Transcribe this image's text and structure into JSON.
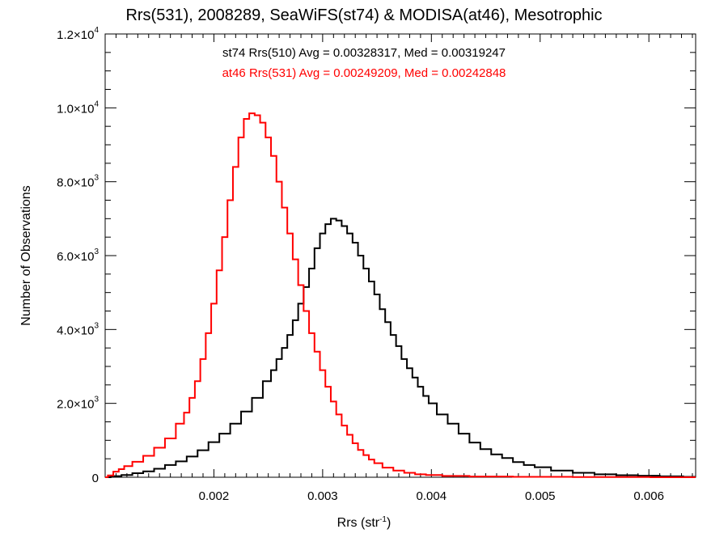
{
  "title": "Rrs(531), 2008289, SeaWiFS(st74) & MODISA(at46), Mesotrophic",
  "annotations": [
    {
      "text": "st74 Rrs(510) Avg = 0.00328317, Med = 0.00319247",
      "color": "#000000"
    },
    {
      "text": "at46 Rrs(531) Avg = 0.00249209, Med = 0.00242848",
      "color": "#ff0000"
    }
  ],
  "chart_data": {
    "type": "line",
    "title": "Rrs(531), 2008289, SeaWiFS(st74) & MODISA(at46), Mesotrophic",
    "xlabel": "Rrs (str",
    "xlabel_sup": "-1",
    "xlabel_tail": ")",
    "ylabel": "Number of Observations",
    "xlim": [
      0.001,
      0.00643
    ],
    "ylim": [
      0,
      12000
    ],
    "x_ticks": [
      0.002,
      0.003,
      0.004,
      0.005,
      0.006
    ],
    "x_tick_labels": [
      "0.002",
      "0.003",
      "0.004",
      "0.005",
      "0.006"
    ],
    "y_ticks": [
      0,
      2000,
      4000,
      6000,
      8000,
      10000,
      12000
    ],
    "y_tick_labels": [
      {
        "mantissa": "0",
        "exp": ""
      },
      {
        "mantissa": "2.0×10",
        "exp": "3"
      },
      {
        "mantissa": "4.0×10",
        "exp": "3"
      },
      {
        "mantissa": "6.0×10",
        "exp": "3"
      },
      {
        "mantissa": "8.0×10",
        "exp": "3"
      },
      {
        "mantissa": "1.0×10",
        "exp": "4"
      },
      {
        "mantissa": "1.2×10",
        "exp": "4"
      }
    ],
    "grid": false,
    "series": [
      {
        "name": "st74 Rrs(510)",
        "color": "#000000",
        "step": true,
        "points": [
          [
            0.001,
            0
          ],
          [
            0.0011,
            30
          ],
          [
            0.0012,
            60
          ],
          [
            0.0013,
            110
          ],
          [
            0.0014,
            160
          ],
          [
            0.0015,
            230
          ],
          [
            0.0016,
            330
          ],
          [
            0.0017,
            430
          ],
          [
            0.0018,
            560
          ],
          [
            0.0019,
            730
          ],
          [
            0.002,
            950
          ],
          [
            0.0021,
            1180
          ],
          [
            0.0022,
            1450
          ],
          [
            0.0023,
            1780
          ],
          [
            0.0024,
            2150
          ],
          [
            0.0025,
            2600
          ],
          [
            0.00255,
            2900
          ],
          [
            0.0026,
            3200
          ],
          [
            0.00265,
            3500
          ],
          [
            0.0027,
            3850
          ],
          [
            0.00275,
            4250
          ],
          [
            0.0028,
            4700
          ],
          [
            0.00285,
            5150
          ],
          [
            0.0029,
            5650
          ],
          [
            0.00295,
            6200
          ],
          [
            0.003,
            6600
          ],
          [
            0.00305,
            6850
          ],
          [
            0.0031,
            7000
          ],
          [
            0.00315,
            6950
          ],
          [
            0.0032,
            6800
          ],
          [
            0.00325,
            6600
          ],
          [
            0.0033,
            6350
          ],
          [
            0.00335,
            6000
          ],
          [
            0.0034,
            5650
          ],
          [
            0.00345,
            5300
          ],
          [
            0.0035,
            4950
          ],
          [
            0.00355,
            4550
          ],
          [
            0.0036,
            4200
          ],
          [
            0.00365,
            3850
          ],
          [
            0.0037,
            3550
          ],
          [
            0.00375,
            3200
          ],
          [
            0.0038,
            2950
          ],
          [
            0.00385,
            2700
          ],
          [
            0.0039,
            2450
          ],
          [
            0.00395,
            2200
          ],
          [
            0.004,
            2000
          ],
          [
            0.0041,
            1700
          ],
          [
            0.0042,
            1450
          ],
          [
            0.0043,
            1180
          ],
          [
            0.0044,
            940
          ],
          [
            0.0045,
            760
          ],
          [
            0.0046,
            620
          ],
          [
            0.0047,
            520
          ],
          [
            0.0048,
            410
          ],
          [
            0.0049,
            330
          ],
          [
            0.005,
            270
          ],
          [
            0.0052,
            180
          ],
          [
            0.0054,
            120
          ],
          [
            0.0056,
            80
          ],
          [
            0.0058,
            55
          ],
          [
            0.006,
            40
          ],
          [
            0.0062,
            25
          ],
          [
            0.00643,
            10
          ]
        ]
      },
      {
        "name": "at46 Rrs(531)",
        "color": "#ff0000",
        "step": true,
        "points": [
          [
            0.001,
            0
          ],
          [
            0.00105,
            50
          ],
          [
            0.0011,
            150
          ],
          [
            0.00115,
            220
          ],
          [
            0.0012,
            300
          ],
          [
            0.0013,
            420
          ],
          [
            0.0014,
            580
          ],
          [
            0.0015,
            800
          ],
          [
            0.0016,
            1050
          ],
          [
            0.0017,
            1450
          ],
          [
            0.00175,
            1750
          ],
          [
            0.0018,
            2150
          ],
          [
            0.00185,
            2600
          ],
          [
            0.0019,
            3200
          ],
          [
            0.00195,
            3900
          ],
          [
            0.002,
            4700
          ],
          [
            0.00205,
            5600
          ],
          [
            0.0021,
            6500
          ],
          [
            0.00215,
            7500
          ],
          [
            0.0022,
            8400
          ],
          [
            0.00225,
            9200
          ],
          [
            0.0023,
            9700
          ],
          [
            0.00235,
            9850
          ],
          [
            0.0024,
            9800
          ],
          [
            0.00245,
            9600
          ],
          [
            0.0025,
            9200
          ],
          [
            0.00255,
            8700
          ],
          [
            0.0026,
            8000
          ],
          [
            0.00265,
            7300
          ],
          [
            0.0027,
            6600
          ],
          [
            0.00275,
            5900
          ],
          [
            0.0028,
            5200
          ],
          [
            0.00285,
            4500
          ],
          [
            0.0029,
            3900
          ],
          [
            0.00295,
            3400
          ],
          [
            0.003,
            2900
          ],
          [
            0.00305,
            2450
          ],
          [
            0.0031,
            2050
          ],
          [
            0.00315,
            1700
          ],
          [
            0.0032,
            1400
          ],
          [
            0.00325,
            1150
          ],
          [
            0.0033,
            920
          ],
          [
            0.00335,
            740
          ],
          [
            0.0034,
            600
          ],
          [
            0.00345,
            480
          ],
          [
            0.0035,
            380
          ],
          [
            0.0036,
            260
          ],
          [
            0.0037,
            180
          ],
          [
            0.0038,
            120
          ],
          [
            0.0039,
            80
          ],
          [
            0.004,
            60
          ],
          [
            0.0042,
            35
          ],
          [
            0.0045,
            20
          ],
          [
            0.005,
            10
          ],
          [
            0.0056,
            5
          ],
          [
            0.00643,
            0
          ]
        ]
      }
    ]
  }
}
